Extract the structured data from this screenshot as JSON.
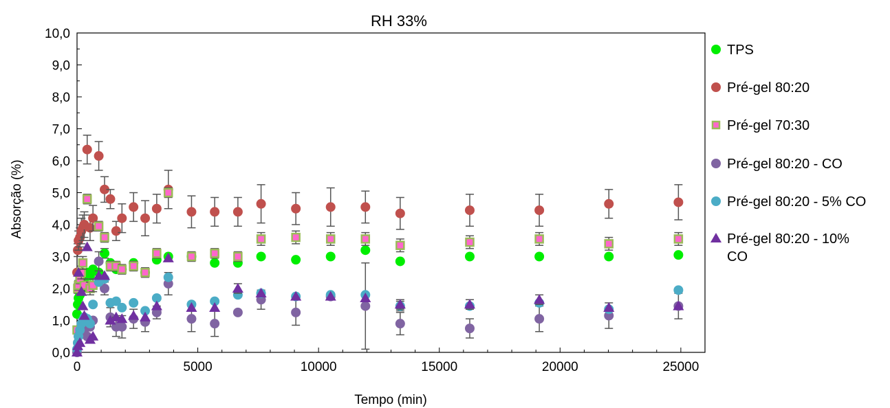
{
  "chart_data": {
    "type": "scatter",
    "title": "RH 33%",
    "xlabel": "Tempo (min)",
    "ylabel": "Absorção (%)",
    "xlim": [
      0,
      26000
    ],
    "ylim": [
      0,
      10
    ],
    "x_ticks": [
      0,
      5000,
      10000,
      15000,
      20000,
      25000
    ],
    "x_tick_labels": [
      "0",
      "5000",
      "10000",
      "15000",
      "20000",
      "25000"
    ],
    "y_ticks": [
      0,
      1,
      2,
      3,
      4,
      5,
      6,
      7,
      8,
      9,
      10
    ],
    "y_tick_labels": [
      "0,0",
      "1,0",
      "2,0",
      "3,0",
      "4,0",
      "5,0",
      "6,0",
      "7,0",
      "8,0",
      "9,0",
      "10,0"
    ],
    "grid": false,
    "legend": "right",
    "legend_labels": {
      "tps": "TPS",
      "pg8020": "Pré-gel 80:20",
      "pg7030": "Pré-gel 70:30",
      "pg8020co": "Pré-gel 80:20 - CO",
      "pg8020co5": "Pré-gel 80:20 - 5% CO",
      "pg8020co10_line1": "Pré-gel 80:20 - 10%",
      "pg8020co10_line2": "CO"
    },
    "series": [
      {
        "name": "TPS",
        "color": "#00ee00",
        "marker": "circle",
        "x": [
          0,
          30,
          60,
          120,
          180,
          240,
          300,
          420,
          540,
          660,
          900,
          1140,
          1380,
          1620,
          1860,
          2340,
          2820,
          3300,
          3780,
          4740,
          5700,
          6660,
          7620,
          9060,
          10500,
          11940,
          13380,
          16260,
          19140,
          22020,
          24900
        ],
        "y": [
          1.2,
          1.5,
          1.7,
          1.8,
          2.0,
          2.2,
          2.3,
          2.5,
          2.4,
          2.6,
          2.5,
          3.1,
          2.8,
          2.6,
          2.6,
          2.8,
          2.5,
          2.9,
          3.0,
          3.0,
          2.8,
          2.8,
          3.0,
          2.9,
          3.0,
          3.2,
          2.85,
          3.0,
          3.0,
          3.0,
          3.05
        ],
        "error": [
          0.1,
          0.1,
          0.1,
          0.1,
          0.1,
          0.1,
          0.1,
          0.1,
          0.1,
          0.1,
          0.1,
          0.15,
          0.1,
          0.1,
          0.1,
          0.1,
          0.1,
          0.1,
          0.1,
          0.1,
          0.1,
          0.1,
          0.1,
          0.1,
          0.1,
          0.1,
          0.1,
          0.1,
          0.1,
          0.1,
          0.1
        ]
      },
      {
        "name": "Pré-gel 80:20",
        "color": "#c0504d",
        "marker": "circle",
        "x": [
          0,
          30,
          60,
          120,
          180,
          240,
          300,
          420,
          540,
          660,
          900,
          1140,
          1380,
          1620,
          1860,
          2340,
          2820,
          3300,
          3780,
          4740,
          5700,
          6660,
          7620,
          9060,
          10500,
          11940,
          13380,
          16260,
          19140,
          22020,
          24900
        ],
        "y": [
          2.5,
          3.2,
          3.5,
          3.6,
          3.8,
          3.9,
          4.0,
          6.35,
          3.9,
          4.2,
          6.15,
          5.1,
          4.8,
          3.8,
          4.2,
          4.55,
          4.2,
          4.5,
          5.1,
          4.4,
          4.4,
          4.4,
          4.65,
          4.5,
          4.55,
          4.55,
          4.35,
          4.45,
          4.45,
          4.65,
          4.7
        ],
        "error": [
          0.1,
          0.2,
          0.3,
          0.3,
          0.4,
          0.4,
          0.4,
          0.45,
          0.4,
          0.4,
          0.45,
          0.4,
          0.3,
          0.3,
          0.45,
          0.45,
          0.55,
          0.45,
          0.6,
          0.5,
          0.45,
          0.45,
          0.6,
          0.5,
          0.6,
          0.5,
          0.5,
          0.5,
          0.5,
          0.45,
          0.55
        ]
      },
      {
        "name": "Pré-gel 70:30",
        "color": "#ff66cc",
        "edge": "#9bbb59",
        "marker": "square",
        "x": [
          0,
          30,
          60,
          120,
          180,
          240,
          300,
          420,
          540,
          660,
          900,
          1140,
          1380,
          1620,
          1860,
          2340,
          2820,
          3300,
          3780,
          4740,
          5700,
          6660,
          7620,
          9060,
          10500,
          11940,
          13380,
          16260,
          19140,
          22020,
          24900
        ],
        "y": [
          0.7,
          2.0,
          2.1,
          2.3,
          2.5,
          2.8,
          2.1,
          4.8,
          2.0,
          2.1,
          3.95,
          3.6,
          2.7,
          2.7,
          2.6,
          2.7,
          2.5,
          3.1,
          5.0,
          3.0,
          3.1,
          3.0,
          3.55,
          3.6,
          3.55,
          3.55,
          3.35,
          3.45,
          3.55,
          3.4,
          3.55
        ],
        "error": [
          0.1,
          0.15,
          0.15,
          0.15,
          0.2,
          0.2,
          0.2,
          0.15,
          0.2,
          0.2,
          0.15,
          0.15,
          0.15,
          0.15,
          0.15,
          0.15,
          0.15,
          0.15,
          0.15,
          0.15,
          0.15,
          0.15,
          0.2,
          0.2,
          0.2,
          0.2,
          0.2,
          0.2,
          0.2,
          0.2,
          0.2
        ]
      },
      {
        "name": "Pré-gel 80:20 - CO",
        "color": "#8064a2",
        "marker": "circle",
        "x": [
          0,
          30,
          60,
          120,
          180,
          240,
          300,
          420,
          540,
          660,
          900,
          1140,
          1380,
          1620,
          1860,
          2340,
          2820,
          3300,
          3780,
          4740,
          5700,
          6660,
          7620,
          9060,
          10500,
          11940,
          13380,
          16260,
          19140,
          22020,
          24900
        ],
        "y": [
          0.0,
          0.3,
          0.5,
          0.6,
          0.7,
          0.8,
          0.7,
          0.5,
          0.8,
          1.0,
          2.85,
          2.0,
          1.1,
          0.8,
          0.8,
          1.05,
          0.95,
          1.25,
          2.15,
          1.05,
          0.9,
          1.25,
          1.65,
          1.25,
          1.75,
          1.45,
          0.9,
          0.75,
          1.05,
          1.15,
          1.45
        ],
        "error": [
          0.1,
          0.1,
          0.1,
          0.1,
          0.1,
          0.1,
          0.1,
          0.1,
          0.1,
          0.1,
          0.3,
          0.2,
          0.3,
          0.3,
          0.35,
          0.3,
          0.3,
          0.2,
          0.35,
          0.4,
          0.4,
          0.1,
          0.3,
          0.4,
          0.1,
          1.35,
          0.35,
          0.3,
          0.4,
          0.4,
          0.4
        ]
      },
      {
        "name": "Pré-gel 80:20 - 5% CO",
        "color": "#4bacc6",
        "marker": "circle",
        "x": [
          0,
          30,
          60,
          120,
          180,
          240,
          300,
          420,
          540,
          660,
          900,
          1140,
          1380,
          1620,
          1860,
          2340,
          2820,
          3300,
          3780,
          4740,
          5700,
          6660,
          7620,
          9060,
          10500,
          11940,
          13380,
          16260,
          19140,
          22020,
          24900
        ],
        "y": [
          0.1,
          0.3,
          0.5,
          0.7,
          0.9,
          1.0,
          1.1,
          1.05,
          0.9,
          1.5,
          2.2,
          2.3,
          1.55,
          1.6,
          1.4,
          1.55,
          1.3,
          1.7,
          2.35,
          1.5,
          1.6,
          1.8,
          1.85,
          1.75,
          1.8,
          1.8,
          1.45,
          1.45,
          1.55,
          1.35,
          1.95
        ],
        "error": [
          0.05,
          0.05,
          0.05,
          0.05,
          0.05,
          0.05,
          0.05,
          0.05,
          0.05,
          0.05,
          0.1,
          0.1,
          0.1,
          0.1,
          0.1,
          0.1,
          0.1,
          0.1,
          0.1,
          0.1,
          0.1,
          0.1,
          0.1,
          0.1,
          0.1,
          0.1,
          0.15,
          0.1,
          0.1,
          0.1,
          0.1
        ]
      },
      {
        "name": "Pré-gel 80:20 - 10% CO",
        "color": "#7030a0",
        "marker": "triangle",
        "x": [
          0,
          30,
          60,
          120,
          180,
          240,
          300,
          420,
          540,
          660,
          900,
          1140,
          1380,
          1620,
          1860,
          2340,
          2820,
          3300,
          3780,
          4740,
          5700,
          6660,
          7620,
          9060,
          10500,
          11940,
          13380,
          16260,
          19140,
          22020,
          24900
        ],
        "y": [
          0.0,
          0.2,
          2.5,
          0.3,
          1.9,
          1.45,
          1.15,
          3.3,
          0.4,
          0.5,
          2.4,
          2.4,
          1.0,
          1.1,
          1.05,
          1.15,
          1.1,
          1.45,
          2.95,
          1.4,
          1.4,
          2.0,
          1.85,
          1.75,
          1.75,
          1.7,
          1.5,
          1.5,
          1.65,
          1.4,
          1.45
        ],
        "error": [
          0.05,
          0.05,
          0.1,
          0.05,
          0.1,
          0.1,
          0.1,
          0.1,
          0.1,
          0.1,
          0.1,
          0.1,
          0.1,
          0.1,
          0.1,
          0.1,
          0.1,
          0.1,
          0.1,
          0.1,
          0.1,
          0.15,
          0.1,
          0.1,
          0.1,
          0.1,
          0.15,
          0.15,
          0.15,
          0.1,
          0.1
        ]
      }
    ]
  }
}
